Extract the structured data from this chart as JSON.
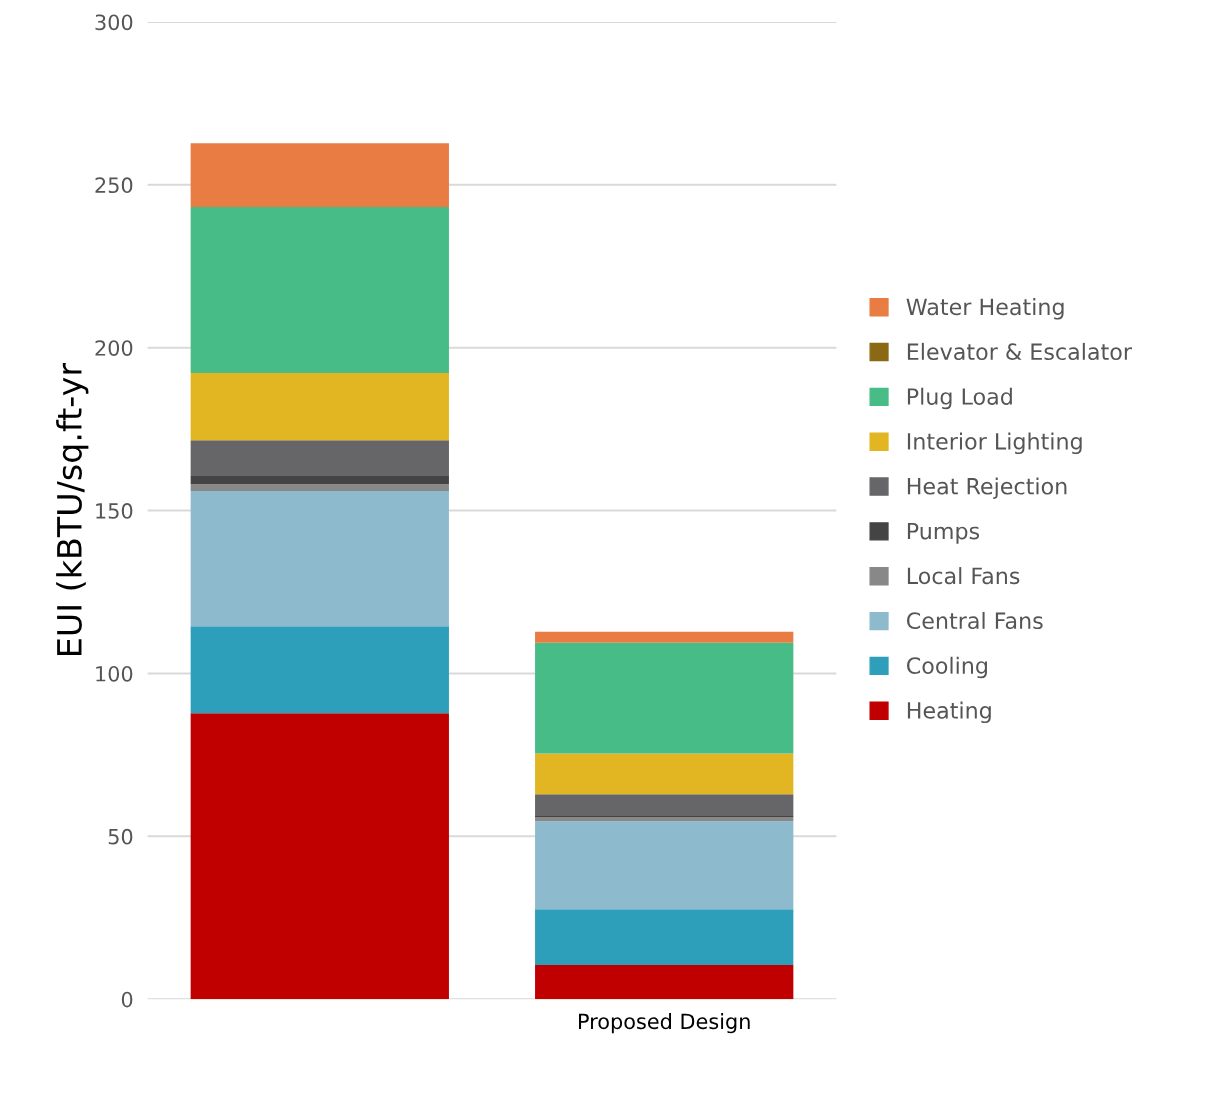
{
  "chart_data": {
    "type": "bar",
    "stacked": true,
    "ylabel": "EUI (kBTU/sq.ft-yr",
    "categories": [
      null,
      "Proposed Design"
    ],
    "ylim": [
      0,
      300
    ],
    "yticks": [
      0,
      50,
      100,
      150,
      200,
      250,
      300
    ],
    "grid": "y",
    "legend": "right",
    "series": [
      {
        "name": "Heating",
        "color": "#c00000",
        "values": [
          87.8,
          10.5
        ]
      },
      {
        "name": "Cooling",
        "color": "#2e9fba",
        "values": [
          26.7,
          17.1
        ]
      },
      {
        "name": "Central Fans",
        "color": "#8dbbcd",
        "values": [
          41.5,
          27.0
        ]
      },
      {
        "name": "Local Fans",
        "color": "#888888",
        "values": [
          2.1,
          1.3
        ]
      },
      {
        "name": "Pumps",
        "color": "#444444",
        "values": [
          2.5,
          0.3
        ]
      },
      {
        "name": "Heat Rejection",
        "color": "#666668",
        "values": [
          11.0,
          6.7
        ]
      },
      {
        "name": "Interior Lighting",
        "color": "#e2b623",
        "values": [
          20.6,
          12.5
        ]
      },
      {
        "name": "Plug Load",
        "color": "#47bc87",
        "values": [
          51.0,
          34.0
        ]
      },
      {
        "name": "Elevator & Escalator",
        "color": "#8b6914",
        "values": [
          0,
          0
        ]
      },
      {
        "name": "Water Heating",
        "color": "#e87c43",
        "values": [
          19.6,
          3.4
        ]
      }
    ]
  }
}
